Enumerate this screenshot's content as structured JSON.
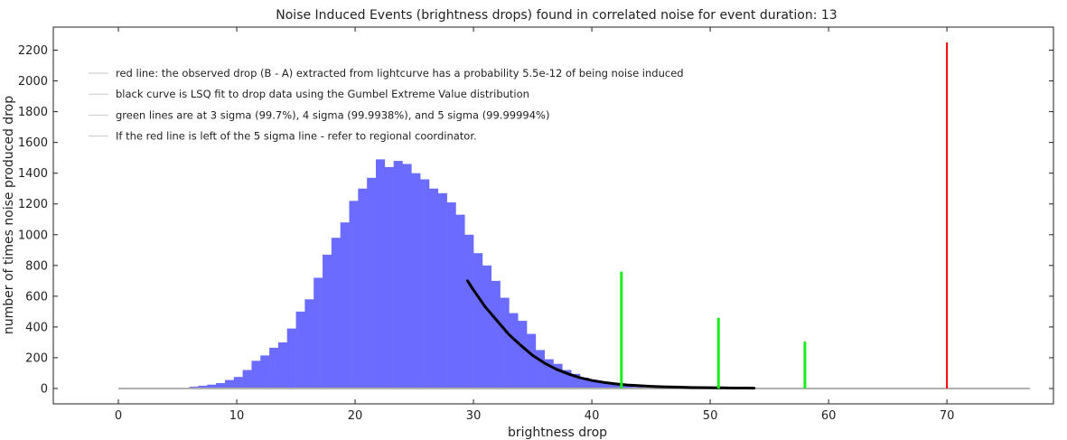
{
  "chart_data": {
    "type": "bar",
    "title": "Noise Induced Events (brightness drops) found in correlated noise for event duration: 13",
    "xlabel": "brightness drop",
    "ylabel": "number of times noise produced drop",
    "xlim": [
      -5.5,
      79
    ],
    "ylim": [
      -100,
      2350
    ],
    "x_ticks": [
      0,
      10,
      20,
      30,
      40,
      50,
      60,
      70
    ],
    "y_ticks": [
      0,
      200,
      400,
      600,
      800,
      1000,
      1200,
      1400,
      1600,
      1800,
      2000,
      2200
    ],
    "grid": false,
    "legend_position": "top-left",
    "legend": [
      "red line: the observed drop (B - A) extracted from lightcurve has a probability 5.5e-12 of being noise induced",
      "black curve is LSQ fit to drop data using the Gumbel Extreme Value distribution",
      "green lines are at 3 sigma (99.7%), 4 sigma (99.9938%), and 5 sigma (99.99994%)",
      "If the red line is left of the 5 sigma line - refer to regional coordinator."
    ],
    "histogram": {
      "color": "#6b6bff",
      "bin_width": 0.75,
      "bins": [
        [
          4.5,
          3
        ],
        [
          5.25,
          5
        ],
        [
          6.0,
          12
        ],
        [
          6.75,
          18
        ],
        [
          7.5,
          25
        ],
        [
          8.25,
          35
        ],
        [
          9.0,
          55
        ],
        [
          9.75,
          75
        ],
        [
          10.5,
          120
        ],
        [
          11.25,
          180
        ],
        [
          12.0,
          215
        ],
        [
          12.75,
          265
        ],
        [
          13.5,
          300
        ],
        [
          14.25,
          390
        ],
        [
          15.0,
          500
        ],
        [
          15.75,
          580
        ],
        [
          16.5,
          720
        ],
        [
          17.25,
          870
        ],
        [
          18.0,
          980
        ],
        [
          18.75,
          1080
        ],
        [
          19.5,
          1220
        ],
        [
          20.25,
          1300
        ],
        [
          21.0,
          1370
        ],
        [
          21.75,
          1490
        ],
        [
          22.5,
          1440
        ],
        [
          23.25,
          1480
        ],
        [
          24.0,
          1460
        ],
        [
          24.75,
          1400
        ],
        [
          25.5,
          1360
        ],
        [
          26.25,
          1300
        ],
        [
          27.0,
          1270
        ],
        [
          27.75,
          1210
        ],
        [
          28.5,
          1130
        ],
        [
          29.25,
          1000
        ],
        [
          30.0,
          880
        ],
        [
          30.75,
          800
        ],
        [
          31.5,
          700
        ],
        [
          32.25,
          590
        ],
        [
          33.0,
          490
        ],
        [
          33.75,
          440
        ],
        [
          34.5,
          355
        ],
        [
          35.25,
          250
        ],
        [
          36.0,
          190
        ],
        [
          36.75,
          160
        ],
        [
          37.5,
          120
        ],
        [
          38.25,
          95
        ],
        [
          39.0,
          70
        ],
        [
          39.75,
          55
        ],
        [
          40.5,
          40
        ],
        [
          41.25,
          30
        ],
        [
          42.0,
          22
        ],
        [
          42.75,
          15
        ],
        [
          43.5,
          10
        ],
        [
          44.25,
          7
        ],
        [
          45.0,
          5
        ],
        [
          45.75,
          3
        ],
        [
          46.5,
          2
        ],
        [
          47.25,
          1
        ]
      ]
    },
    "fit_curve": {
      "name": "Gumbel EVD fit",
      "color": "#000000",
      "points": [
        [
          29.5,
          700
        ],
        [
          30,
          640
        ],
        [
          31,
          530
        ],
        [
          32,
          440
        ],
        [
          33,
          350
        ],
        [
          34,
          280
        ],
        [
          35,
          215
        ],
        [
          36,
          165
        ],
        [
          37,
          125
        ],
        [
          38,
          95
        ],
        [
          39,
          70
        ],
        [
          40,
          52
        ],
        [
          41,
          40
        ],
        [
          42,
          30
        ],
        [
          43,
          23
        ],
        [
          44,
          18
        ],
        [
          45,
          14
        ],
        [
          46,
          11
        ],
        [
          47,
          9
        ],
        [
          48,
          7
        ],
        [
          49,
          6
        ],
        [
          50,
          5
        ],
        [
          51,
          4
        ],
        [
          52,
          3
        ],
        [
          53,
          3
        ],
        [
          53.7,
          2
        ]
      ]
    },
    "baseline": {
      "color": "#b0b0b0",
      "x": [
        0,
        77
      ],
      "y": 0
    },
    "sigma_lines": {
      "color": "#1aee1a",
      "lines": [
        {
          "label": "3 sigma",
          "x": 42.5,
          "height": 760
        },
        {
          "label": "4 sigma",
          "x": 50.7,
          "height": 460
        },
        {
          "label": "5 sigma",
          "x": 58.0,
          "height": 305
        }
      ]
    },
    "observed_line": {
      "color": "#ff0000",
      "x": 70.0,
      "height": 2250
    }
  }
}
